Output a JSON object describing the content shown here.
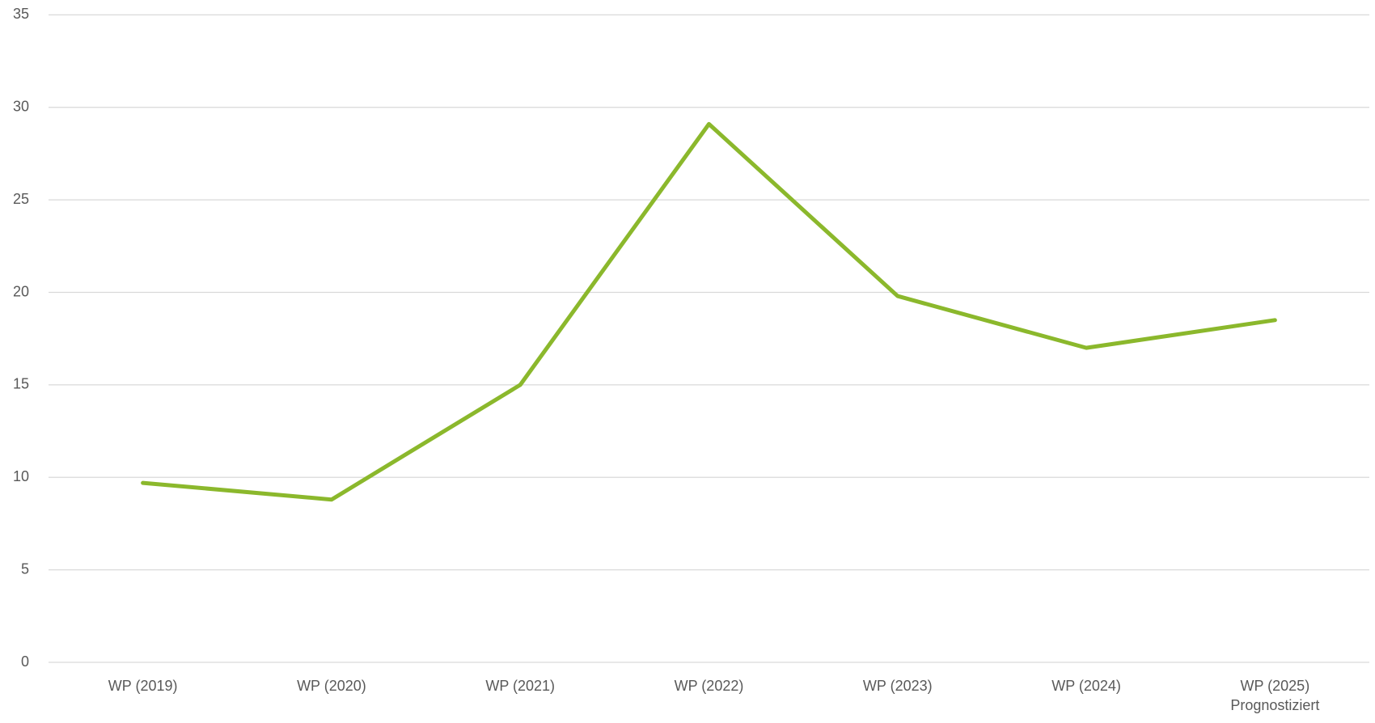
{
  "chart_data": {
    "type": "line",
    "categories": [
      "WP (2019)",
      "WP (2020)",
      "WP (2021)",
      "WP (2022)",
      "WP (2023)",
      "WP (2024)",
      "WP (2025)\nPrognostiziert"
    ],
    "series": [
      {
        "name": "WP",
        "color": "#8bb82c",
        "values": [
          9.7,
          8.8,
          15.0,
          29.1,
          19.8,
          17.0,
          18.5
        ]
      }
    ],
    "ylim": [
      0,
      35
    ],
    "yticks": [
      0,
      5,
      10,
      15,
      20,
      25,
      30,
      35
    ],
    "grid": true
  }
}
